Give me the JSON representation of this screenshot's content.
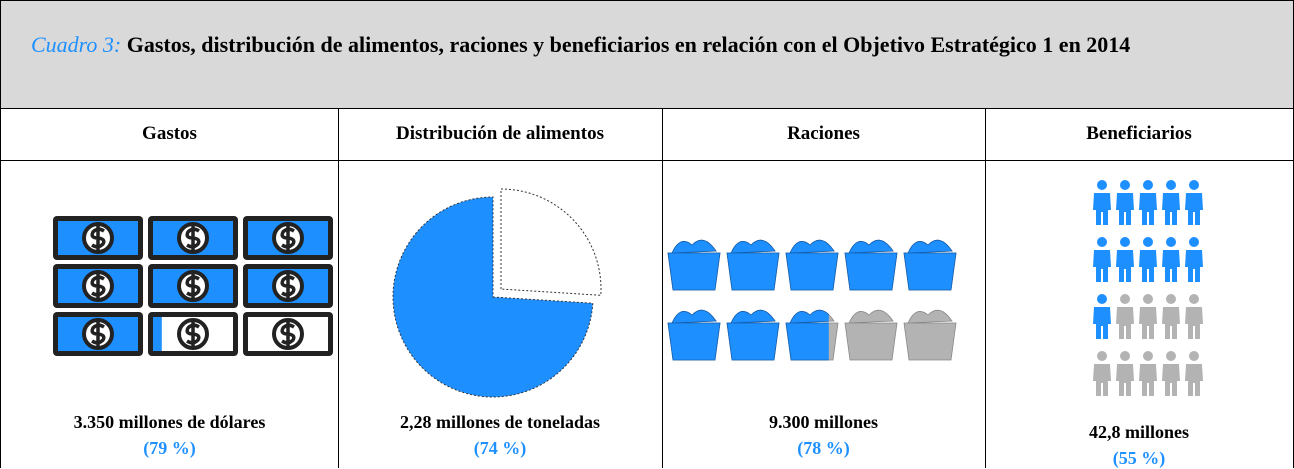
{
  "caption": {
    "label": "Cuadro 3:",
    "title": "Gastos, distribución de alimentos, raciones y beneficiarios en relación con el Objetivo Estratégico 1 en 2014"
  },
  "table": {
    "headers": [
      "Gastos",
      "Distribución de alimentos",
      "Raciones",
      "Beneficiarios"
    ],
    "cells": [
      {
        "value": "3.350 millones de dólares",
        "share": 79,
        "share_label": "(79 %)"
      },
      {
        "value": "2,28 millones de toneladas",
        "share": 74,
        "share_label": "(74 %)"
      },
      {
        "value": "9.300 millones",
        "share": 78,
        "share_label": "(78 %)"
      },
      {
        "value": "42,8 millones",
        "share": 55,
        "share_label": "(55 %)"
      }
    ]
  }
}
